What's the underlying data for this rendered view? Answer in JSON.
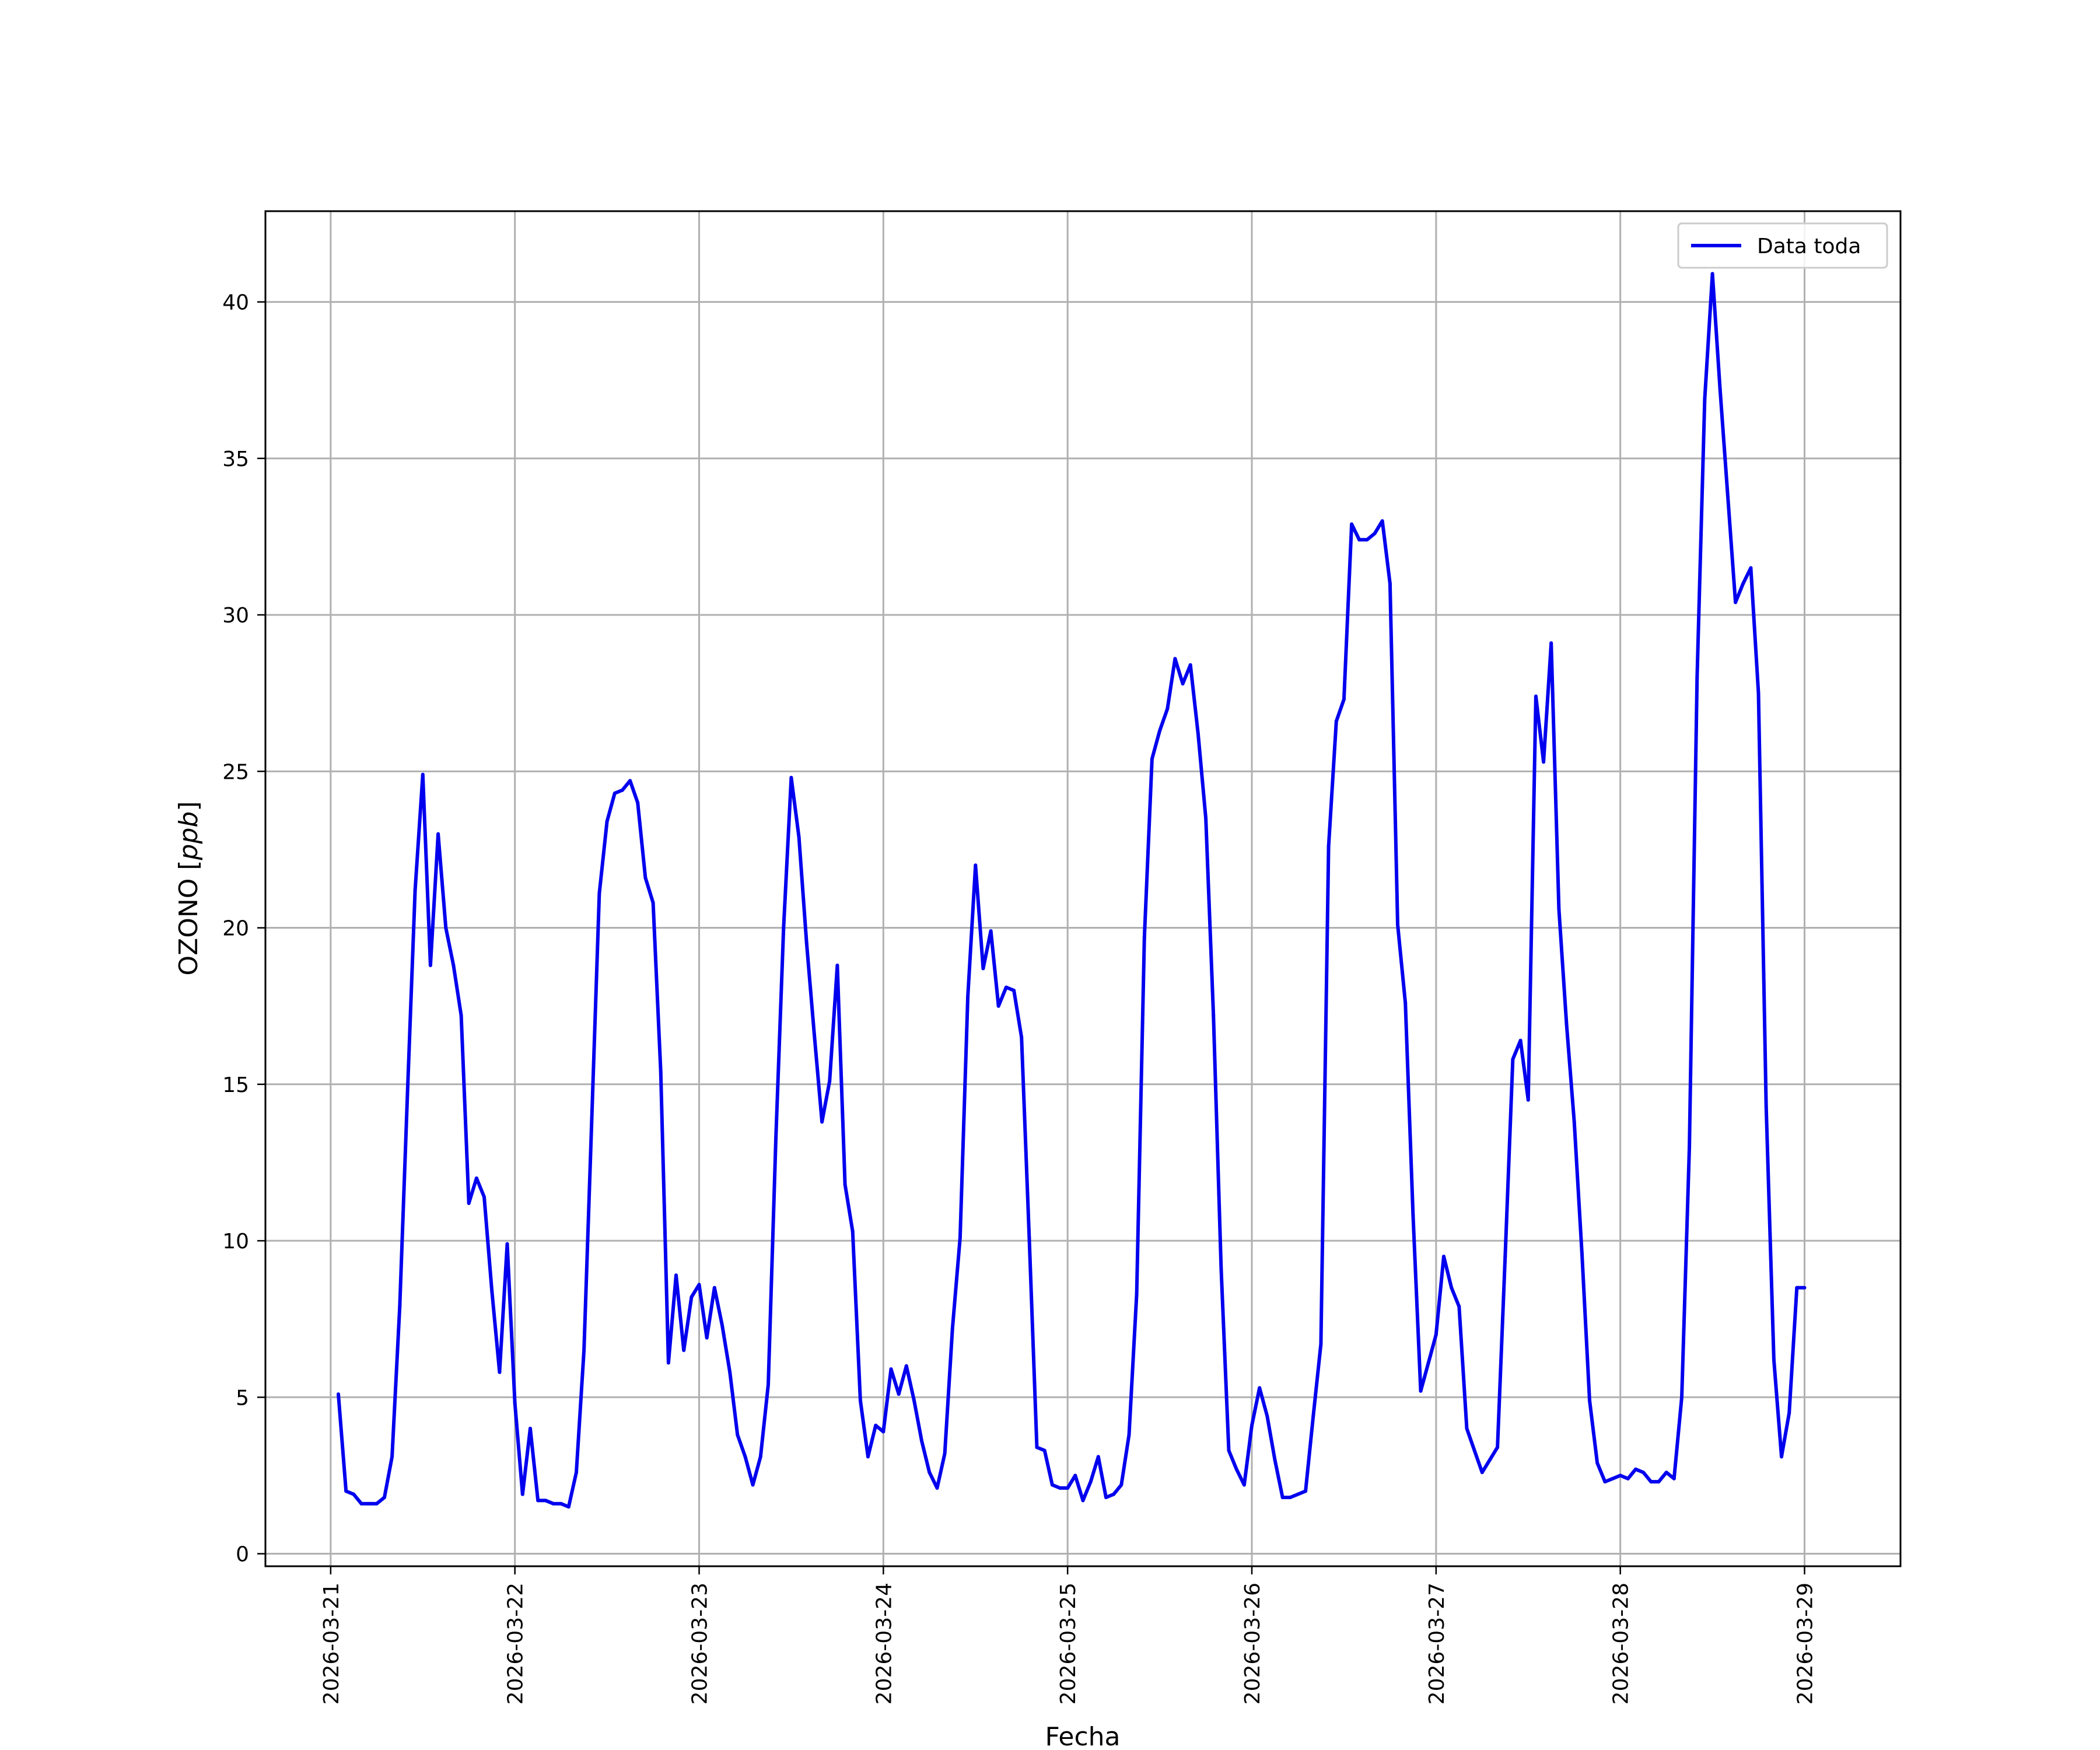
{
  "chart_data": {
    "type": "line",
    "title": "",
    "xlabel": "Fecha",
    "ylabel_text": "OZONO [",
    "ylabel_unit": "ppb",
    "ylabel_close": "]",
    "ylim": [
      -0.4,
      42.9
    ],
    "xlim": [
      "2026-03-20 15:30",
      "2026-03-29 12:30"
    ],
    "grid": true,
    "legend_position": "top-right",
    "colors": {
      "series": "#0000ee",
      "grid": "#b0b0b0",
      "frame": "#000000"
    },
    "x_ticks": [
      "2026-03-21",
      "2026-03-22",
      "2026-03-23",
      "2026-03-24",
      "2026-03-25",
      "2026-03-26",
      "2026-03-27",
      "2026-03-28",
      "2026-03-29"
    ],
    "y_ticks": [
      0,
      5,
      10,
      15,
      20,
      25,
      30,
      35,
      40
    ],
    "series": [
      {
        "name": "Data toda",
        "x": [
          "2026-03-21 01:00",
          "2026-03-21 02:00",
          "2026-03-21 03:00",
          "2026-03-21 04:00",
          "2026-03-21 05:00",
          "2026-03-21 06:00",
          "2026-03-21 07:00",
          "2026-03-21 08:00",
          "2026-03-21 09:00",
          "2026-03-21 10:00",
          "2026-03-21 11:00",
          "2026-03-21 12:00",
          "2026-03-21 13:00",
          "2026-03-21 14:00",
          "2026-03-21 15:00",
          "2026-03-21 16:00",
          "2026-03-21 17:00",
          "2026-03-21 18:00",
          "2026-03-21 19:00",
          "2026-03-21 20:00",
          "2026-03-21 21:00",
          "2026-03-21 22:00",
          "2026-03-21 23:00",
          "2026-03-22 00:00",
          "2026-03-22 01:00",
          "2026-03-22 02:00",
          "2026-03-22 03:00",
          "2026-03-22 04:00",
          "2026-03-22 05:00",
          "2026-03-22 06:00",
          "2026-03-22 07:00",
          "2026-03-22 08:00",
          "2026-03-22 09:00",
          "2026-03-22 10:00",
          "2026-03-22 11:00",
          "2026-03-22 12:00",
          "2026-03-22 13:00",
          "2026-03-22 14:00",
          "2026-03-22 15:00",
          "2026-03-22 16:00",
          "2026-03-22 17:00",
          "2026-03-22 18:00",
          "2026-03-22 19:00",
          "2026-03-22 20:00",
          "2026-03-22 21:00",
          "2026-03-22 22:00",
          "2026-03-22 23:00",
          "2026-03-23 00:00",
          "2026-03-23 01:00",
          "2026-03-23 02:00",
          "2026-03-23 03:00",
          "2026-03-23 04:00",
          "2026-03-23 05:00",
          "2026-03-23 06:00",
          "2026-03-23 07:00",
          "2026-03-23 08:00",
          "2026-03-23 09:00",
          "2026-03-23 10:00",
          "2026-03-23 11:00",
          "2026-03-23 12:00",
          "2026-03-23 13:00",
          "2026-03-23 14:00",
          "2026-03-23 15:00",
          "2026-03-23 16:00",
          "2026-03-23 17:00",
          "2026-03-23 18:00",
          "2026-03-23 19:00",
          "2026-03-23 20:00",
          "2026-03-23 21:00",
          "2026-03-23 22:00",
          "2026-03-23 23:00",
          "2026-03-24 00:00",
          "2026-03-24 01:00",
          "2026-03-24 02:00",
          "2026-03-24 03:00",
          "2026-03-24 04:00",
          "2026-03-24 05:00",
          "2026-03-24 06:00",
          "2026-03-24 07:00",
          "2026-03-24 08:00",
          "2026-03-24 09:00",
          "2026-03-24 10:00",
          "2026-03-24 11:00",
          "2026-03-24 12:00",
          "2026-03-24 13:00",
          "2026-03-24 14:00",
          "2026-03-24 15:00",
          "2026-03-24 16:00",
          "2026-03-24 17:00",
          "2026-03-24 18:00",
          "2026-03-24 19:00",
          "2026-03-24 20:00",
          "2026-03-24 21:00",
          "2026-03-24 22:00",
          "2026-03-24 23:00",
          "2026-03-25 00:00",
          "2026-03-25 01:00",
          "2026-03-25 02:00",
          "2026-03-25 03:00",
          "2026-03-25 04:00",
          "2026-03-25 05:00",
          "2026-03-25 06:00",
          "2026-03-25 07:00",
          "2026-03-25 08:00",
          "2026-03-25 09:00",
          "2026-03-25 10:00",
          "2026-03-25 11:00",
          "2026-03-25 12:00",
          "2026-03-25 13:00",
          "2026-03-25 14:00",
          "2026-03-25 15:00",
          "2026-03-25 16:00",
          "2026-03-25 17:00",
          "2026-03-25 18:00",
          "2026-03-25 19:00",
          "2026-03-25 20:00",
          "2026-03-25 21:00",
          "2026-03-25 22:00",
          "2026-03-25 23:00",
          "2026-03-26 00:00",
          "2026-03-26 01:00",
          "2026-03-26 02:00",
          "2026-03-26 03:00",
          "2026-03-26 04:00",
          "2026-03-26 05:00",
          "2026-03-26 06:00",
          "2026-03-26 07:00",
          "2026-03-26 08:00",
          "2026-03-26 09:00",
          "2026-03-26 10:00",
          "2026-03-26 11:00",
          "2026-03-26 12:00",
          "2026-03-26 13:00",
          "2026-03-26 14:00",
          "2026-03-26 15:00",
          "2026-03-26 16:00",
          "2026-03-26 17:00",
          "2026-03-26 18:00",
          "2026-03-26 19:00",
          "2026-03-26 20:00",
          "2026-03-26 21:00",
          "2026-03-26 22:00",
          "2026-03-26 23:00",
          "2026-03-27 00:00",
          "2026-03-27 01:00",
          "2026-03-27 02:00",
          "2026-03-27 03:00",
          "2026-03-27 04:00",
          "2026-03-27 05:00",
          "2026-03-27 06:00",
          "2026-03-27 07:00",
          "2026-03-27 08:00",
          "2026-03-27 09:00",
          "2026-03-27 10:00",
          "2026-03-27 11:00",
          "2026-03-27 12:00",
          "2026-03-27 13:00",
          "2026-03-27 14:00",
          "2026-03-27 15:00",
          "2026-03-27 16:00",
          "2026-03-27 17:00",
          "2026-03-27 18:00",
          "2026-03-27 19:00",
          "2026-03-27 20:00",
          "2026-03-27 21:00",
          "2026-03-27 22:00",
          "2026-03-27 23:00",
          "2026-03-28 00:00",
          "2026-03-28 01:00",
          "2026-03-28 02:00",
          "2026-03-28 03:00",
          "2026-03-28 04:00",
          "2026-03-28 05:00",
          "2026-03-28 06:00",
          "2026-03-28 07:00",
          "2026-03-28 08:00",
          "2026-03-28 09:00",
          "2026-03-28 10:00",
          "2026-03-28 11:00",
          "2026-03-28 12:00",
          "2026-03-28 13:00",
          "2026-03-28 14:00",
          "2026-03-28 15:00",
          "2026-03-28 16:00",
          "2026-03-28 17:00",
          "2026-03-28 18:00",
          "2026-03-28 19:00",
          "2026-03-28 20:00",
          "2026-03-28 21:00",
          "2026-03-28 22:00",
          "2026-03-28 23:00",
          "2026-03-29 00:00"
        ],
        "values": [
          5.1,
          2.0,
          1.9,
          1.6,
          1.6,
          1.6,
          1.8,
          3.1,
          7.9,
          14.7,
          21.2,
          24.9,
          18.8,
          23.0,
          20.0,
          18.8,
          17.2,
          11.2,
          12.0,
          11.4,
          8.4,
          5.8,
          9.9,
          4.8,
          1.9,
          4.0,
          1.7,
          1.7,
          1.6,
          1.6,
          1.5,
          2.6,
          6.5,
          13.8,
          21.1,
          23.4,
          24.3,
          24.4,
          24.7,
          24.0,
          21.6,
          20.8,
          15.4,
          6.1,
          8.9,
          6.5,
          8.2,
          8.6,
          6.9,
          8.5,
          7.3,
          5.8,
          3.8,
          3.1,
          2.2,
          3.1,
          5.4,
          13.3,
          20.0,
          24.8,
          22.9,
          19.5,
          16.6,
          13.8,
          15.1,
          18.8,
          11.8,
          10.3,
          4.9,
          3.1,
          4.1,
          3.9,
          5.9,
          5.1,
          6.0,
          4.9,
          3.6,
          2.6,
          2.1,
          3.2,
          7.2,
          10.1,
          17.8,
          22.0,
          18.7,
          19.9,
          17.5,
          18.1,
          18.0,
          16.5,
          10.1,
          3.4,
          3.3,
          2.2,
          2.1,
          2.1,
          2.5,
          1.7,
          2.3,
          3.1,
          1.8,
          1.9,
          2.2,
          3.8,
          8.3,
          19.7,
          25.4,
          26.3,
          27.0,
          28.6,
          27.8,
          28.4,
          26.2,
          23.5,
          17.2,
          9.1,
          3.3,
          2.7,
          2.2,
          4.1,
          5.3,
          4.4,
          3.0,
          1.8,
          1.8,
          1.9,
          2.0,
          4.4,
          6.7,
          22.6,
          26.6,
          27.3,
          32.9,
          32.4,
          32.4,
          32.6,
          33.0,
          31.0,
          20.1,
          17.6,
          10.8,
          5.2,
          6.1,
          7.0,
          9.5,
          8.5,
          7.9,
          4.0,
          3.3,
          2.6,
          3.0,
          3.4,
          9.5,
          15.8,
          16.4,
          14.5,
          27.4,
          25.3,
          29.1,
          20.6,
          16.9,
          13.8,
          9.6,
          4.9,
          2.9,
          2.3,
          2.4,
          2.5,
          2.4,
          2.7,
          2.6,
          2.3,
          2.3,
          2.6,
          2.4,
          5.0,
          13.0,
          28.0,
          36.9,
          40.9,
          37.2,
          33.8,
          30.4,
          31.0,
          31.5,
          27.5,
          14.3,
          6.2,
          3.1,
          4.5,
          8.5,
          8.5
        ]
      }
    ]
  }
}
